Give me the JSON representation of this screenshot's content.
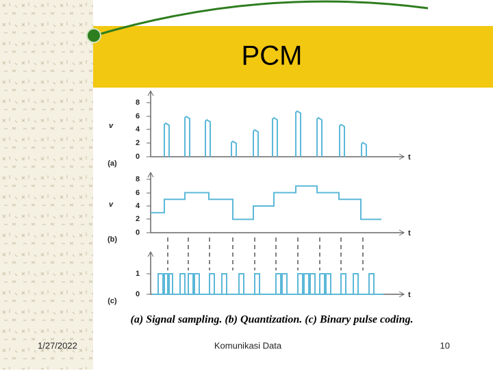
{
  "header": {
    "title": "PCM"
  },
  "figure": {
    "panel_a": {
      "axis_label": "v",
      "ticks": [
        "8",
        "6",
        "4",
        "2",
        "0"
      ],
      "time_label": "t",
      "label": "(a)"
    },
    "panel_b": {
      "axis_label": "v",
      "ticks": [
        "8",
        "6",
        "4",
        "2",
        "0"
      ],
      "time_label": "t",
      "label": "(b)"
    },
    "panel_c": {
      "ticks": [
        "1",
        "0"
      ],
      "time_label": "t",
      "label": "(c)"
    },
    "caption": "(a) Signal sampling. (b) Quantization. (c) Binary pulse coding."
  },
  "footer": {
    "date": "1/27/2022",
    "center": "Komunikasi Data",
    "page": "10"
  }
}
